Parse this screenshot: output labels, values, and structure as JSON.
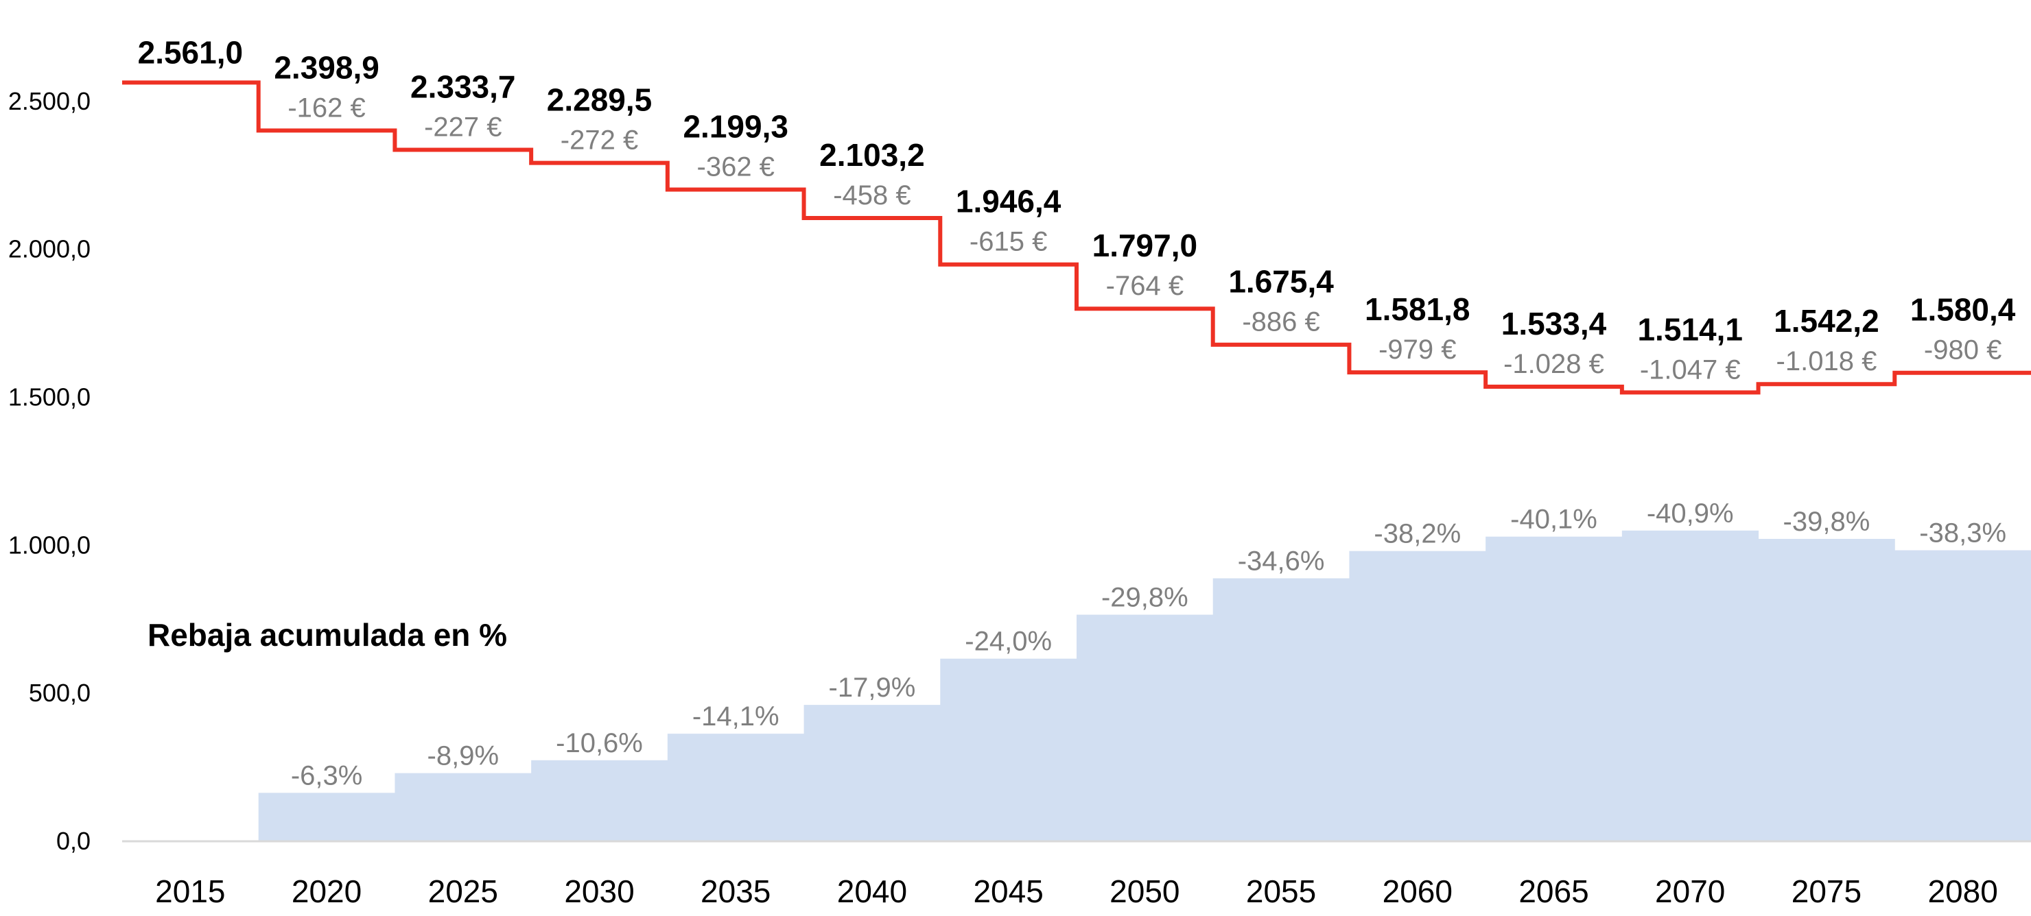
{
  "chart_data": {
    "type": "step-line+area",
    "categories": [
      "2015",
      "2020",
      "2025",
      "2030",
      "2035",
      "2040",
      "2045",
      "2050",
      "2055",
      "2060",
      "2065",
      "2070",
      "2075",
      "2080"
    ],
    "series": [
      {
        "kind": "step-line",
        "color": "#ee3124",
        "values": [
          2561.0,
          2398.9,
          2333.7,
          2289.5,
          2199.3,
          2103.2,
          1946.4,
          1797.0,
          1675.4,
          1581.8,
          1533.4,
          1514.1,
          1542.2,
          1580.4
        ],
        "value_labels": [
          "2.561,0",
          "2.398,9",
          "2.333,7",
          "2.289,5",
          "2.199,3",
          "2.103,2",
          "1.946,4",
          "1.797,0",
          "1.675,4",
          "1.581,8",
          "1.533,4",
          "1.514,1",
          "1.542,2",
          "1.580,4"
        ],
        "delta_labels": [
          "",
          "-162 €",
          "-227 €",
          "-272 €",
          "-362 €",
          "-458 €",
          "-615 €",
          "-764 €",
          "-886 €",
          "-979 €",
          "-1.028 €",
          "-1.047 €",
          "-1.018 €",
          "-980 €"
        ]
      },
      {
        "kind": "step-area",
        "color": "#d2dff2",
        "percent_values": [
          0,
          -6.3,
          -8.9,
          -10.6,
          -14.1,
          -17.9,
          -24.0,
          -29.8,
          -34.6,
          -38.2,
          -40.1,
          -40.9,
          -39.8,
          -38.3
        ],
        "percent_labels": [
          "",
          "-6,3%",
          "-8,9%",
          "-10,6%",
          "-14,1%",
          "-17,9%",
          "-24,0%",
          "-29,8%",
          "-34,6%",
          "-38,2%",
          "-40,1%",
          "-40,9%",
          "-39,8%",
          "-38,3%"
        ]
      }
    ],
    "annotation": "Rebaja acumulada en %",
    "ylim": [
      0,
      2700
    ],
    "yticks": [
      0,
      500,
      1000,
      1500,
      2000,
      2500
    ],
    "ytick_labels": [
      "0,0",
      "500,0",
      "1.000,0",
      "1.500,0",
      "2.000,0",
      "2.500,0"
    ],
    "xlabel": "",
    "ylabel": "",
    "title": "",
    "grid": false,
    "legend": "none",
    "axis_color": "#d9d9d9"
  }
}
